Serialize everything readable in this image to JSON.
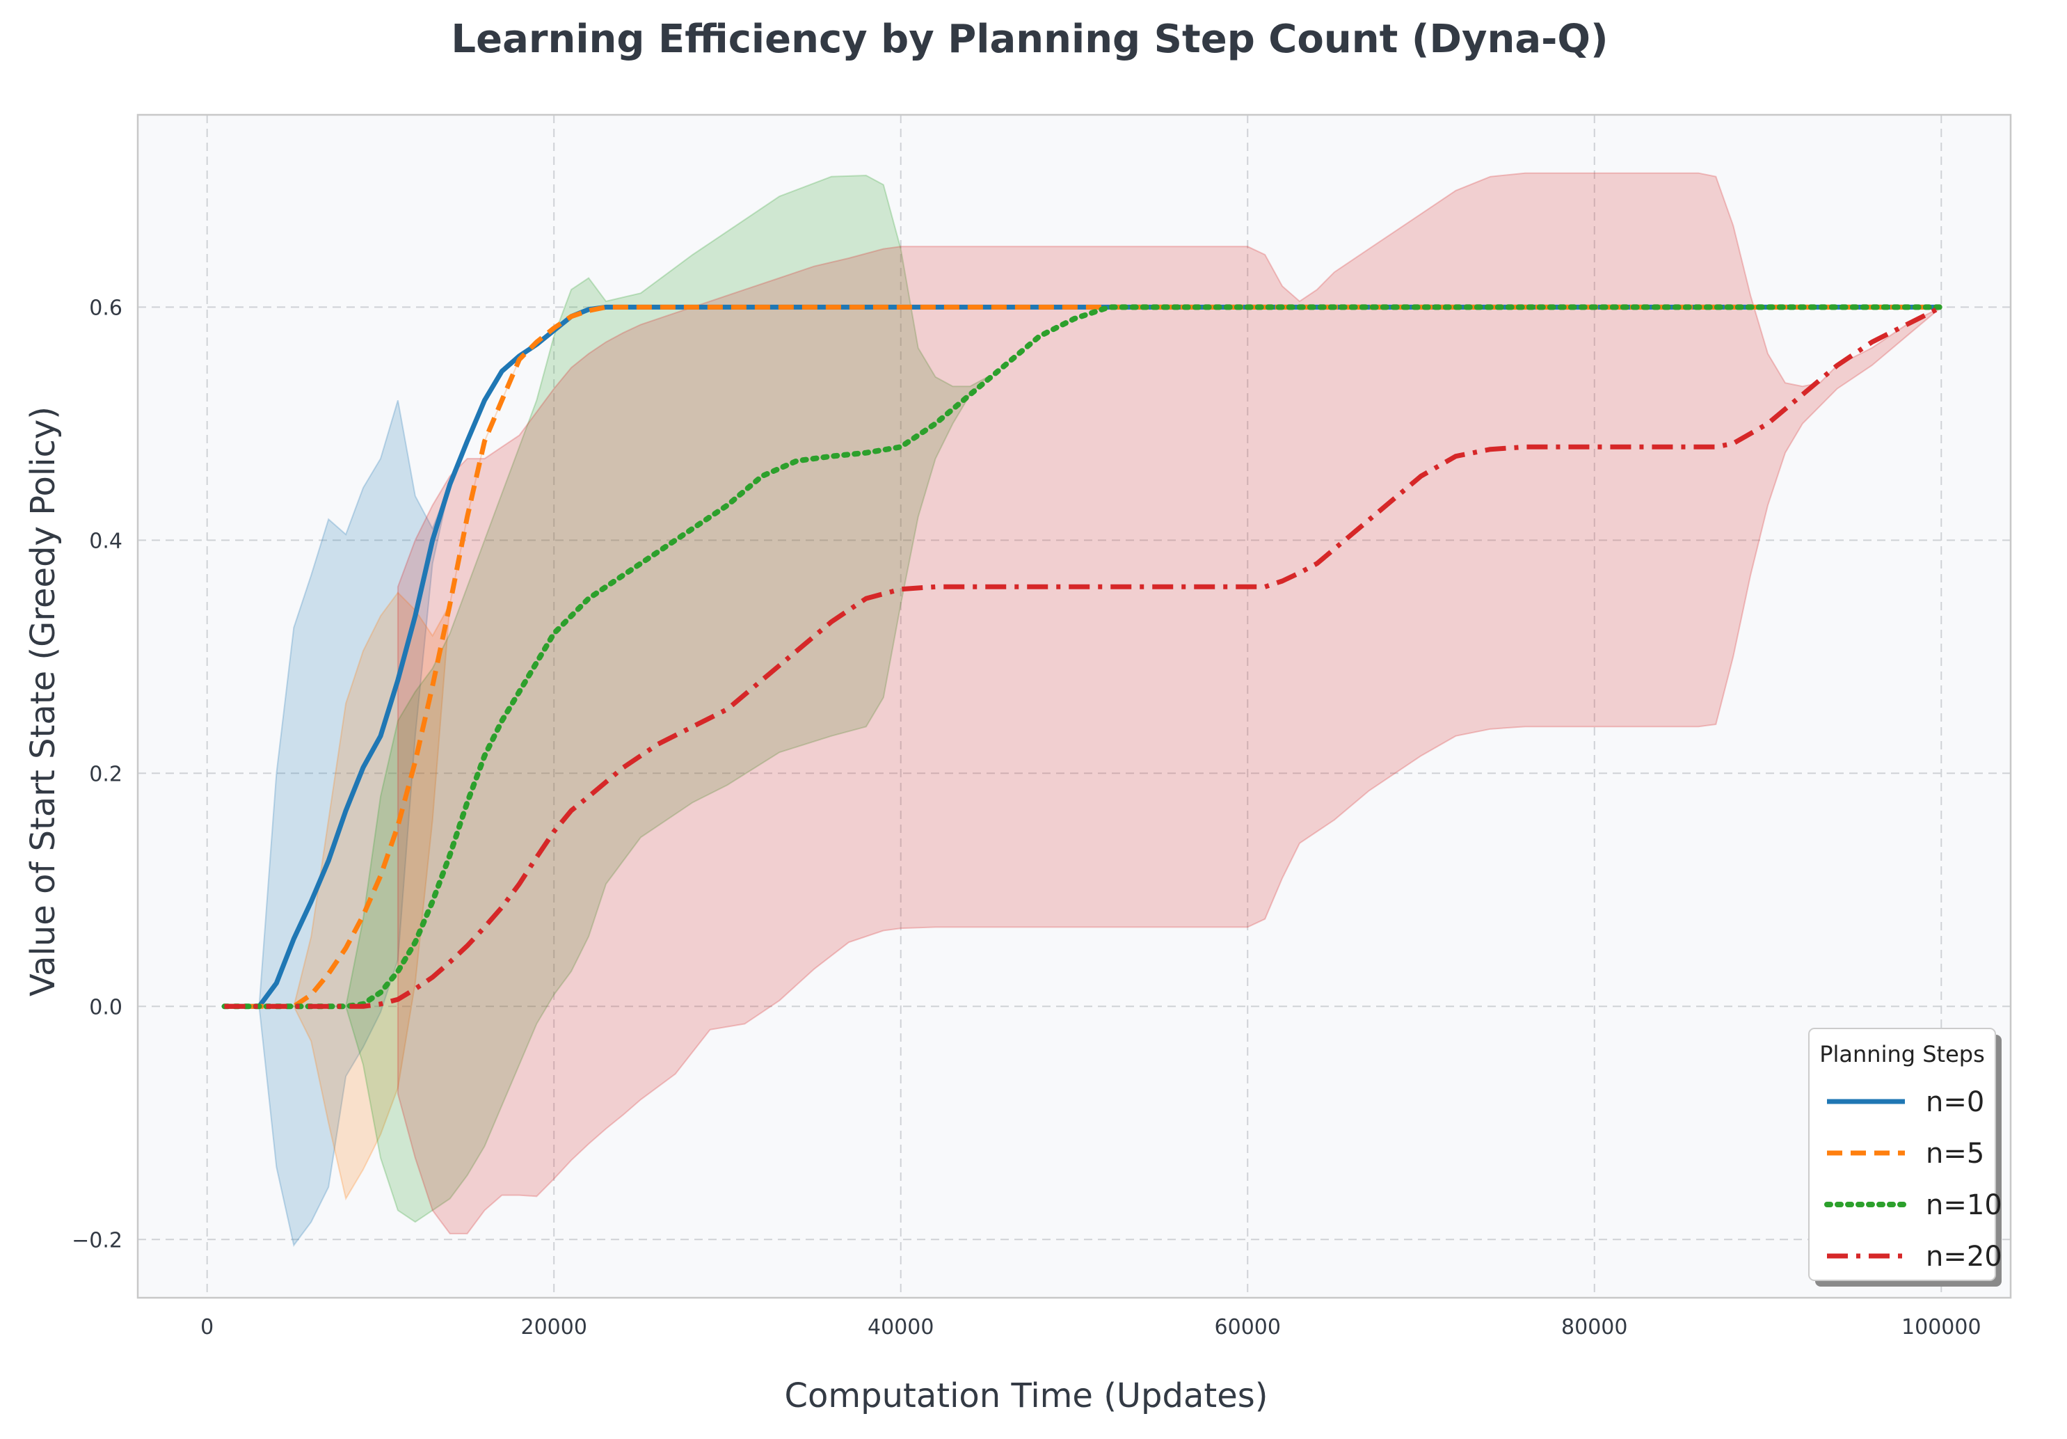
{
  "chart_data": {
    "type": "line",
    "title": "Learning Efficiency by Planning Step Count (Dyna-Q)",
    "xlabel": "Computation Time (Updates)",
    "ylabel": "Value of Start State (Greedy Policy)",
    "xlim": [
      -4000,
      104000
    ],
    "ylim": [
      -0.25,
      0.765
    ],
    "xticks": [
      0,
      20000,
      40000,
      60000,
      80000,
      100000
    ],
    "xtick_labels": [
      "0",
      "20000",
      "40000",
      "60000",
      "80000",
      "100000"
    ],
    "yticks": [
      -0.2,
      0.0,
      0.2,
      0.4,
      0.6
    ],
    "ytick_labels": [
      "−0.2",
      "0.0",
      "0.2",
      "0.4",
      "0.6"
    ],
    "grid": true,
    "legend": {
      "title": "Planning Steps",
      "placement": "lower-right"
    },
    "series": [
      {
        "name": "n=0",
        "color": "#1f77b4",
        "style": "solid",
        "x": [
          1000,
          3000,
          4000,
          5000,
          6000,
          7000,
          8000,
          9000,
          10000,
          11000,
          12000,
          13000,
          14000,
          15000,
          16000,
          17000,
          18000,
          19000,
          20000,
          21000,
          22000,
          23000,
          25000,
          30000,
          40000,
          50000,
          60000,
          70000,
          80000,
          90000,
          100000
        ],
        "y": [
          0.0,
          0.0,
          0.02,
          0.058,
          0.09,
          0.125,
          0.168,
          0.205,
          0.232,
          0.28,
          0.335,
          0.4,
          0.448,
          0.485,
          0.52,
          0.545,
          0.558,
          0.568,
          0.58,
          0.592,
          0.598,
          0.6,
          0.6,
          0.6,
          0.6,
          0.6,
          0.6,
          0.6,
          0.6,
          0.6,
          0.6
        ],
        "band_x": [
          3000,
          4000,
          5000,
          6000,
          7000,
          8000,
          9000,
          10000,
          11000,
          12000,
          13000,
          14000,
          15000,
          16000,
          17000,
          18000,
          19000,
          20000,
          21000,
          22000
        ],
        "band_upper": [
          0.0,
          0.2,
          0.325,
          0.37,
          0.418,
          0.405,
          0.445,
          0.47,
          0.52,
          0.438,
          0.41,
          0.448,
          0.485,
          0.52,
          0.545,
          0.558,
          0.568,
          0.58,
          0.592,
          0.598
        ],
        "band_lower": [
          0.0,
          -0.138,
          -0.205,
          -0.185,
          -0.155,
          -0.06,
          -0.035,
          -0.005,
          0.04,
          0.232,
          0.38,
          0.448,
          0.485,
          0.52,
          0.545,
          0.558,
          0.568,
          0.58,
          0.592,
          0.598
        ]
      },
      {
        "name": "n=5",
        "color": "#ff7f0e",
        "style": "dashed",
        "x": [
          1000,
          5000,
          6000,
          7000,
          8000,
          9000,
          10000,
          11000,
          12000,
          13000,
          14000,
          15000,
          16000,
          17000,
          18000,
          19000,
          20000,
          21000,
          22000,
          23000,
          25000,
          30000,
          40000,
          50000,
          60000,
          70000,
          80000,
          90000,
          100000
        ],
        "y": [
          0.0,
          0.0,
          0.01,
          0.028,
          0.05,
          0.078,
          0.112,
          0.155,
          0.21,
          0.275,
          0.345,
          0.42,
          0.485,
          0.52,
          0.555,
          0.57,
          0.582,
          0.592,
          0.597,
          0.6,
          0.6,
          0.6,
          0.6,
          0.6,
          0.6,
          0.6,
          0.6,
          0.6,
          0.6
        ],
        "band_x": [
          5000,
          6000,
          7000,
          8000,
          9000,
          10000,
          11000,
          12000,
          13000,
          14000,
          15000,
          16000,
          17000,
          18000,
          19000,
          20000,
          21000,
          22000
        ],
        "band_upper": [
          0.0,
          0.06,
          0.16,
          0.26,
          0.305,
          0.335,
          0.355,
          0.34,
          0.318,
          0.345,
          0.42,
          0.485,
          0.52,
          0.555,
          0.57,
          0.582,
          0.592,
          0.597
        ],
        "band_lower": [
          0.0,
          -0.03,
          -0.1,
          -0.165,
          -0.14,
          -0.11,
          -0.07,
          0.02,
          0.16,
          0.345,
          0.42,
          0.485,
          0.52,
          0.555,
          0.57,
          0.582,
          0.592,
          0.597
        ]
      },
      {
        "name": "n=10",
        "color": "#2ca02c",
        "style": "dotted",
        "x": [
          1000,
          8000,
          9000,
          10000,
          11000,
          12000,
          13000,
          14000,
          15000,
          16000,
          17000,
          18000,
          19000,
          20000,
          21000,
          22000,
          23000,
          24000,
          25000,
          26000,
          28000,
          30000,
          32000,
          34000,
          36000,
          38000,
          40000,
          42000,
          44000,
          46000,
          48000,
          50000,
          52000,
          55000,
          60000,
          70000,
          80000,
          90000,
          100000
        ],
        "y": [
          0.0,
          0.0,
          0.002,
          0.012,
          0.03,
          0.055,
          0.09,
          0.13,
          0.175,
          0.215,
          0.245,
          0.27,
          0.295,
          0.32,
          0.335,
          0.35,
          0.36,
          0.37,
          0.38,
          0.39,
          0.41,
          0.43,
          0.455,
          0.468,
          0.472,
          0.475,
          0.48,
          0.5,
          0.525,
          0.55,
          0.575,
          0.59,
          0.6,
          0.6,
          0.6,
          0.6,
          0.6,
          0.6,
          0.6
        ],
        "band_x": [
          8000,
          9000,
          10000,
          11000,
          12000,
          13000,
          14000,
          15000,
          16000,
          17000,
          18000,
          19000,
          20000,
          21000,
          22000,
          23000,
          25000,
          28000,
          30000,
          33000,
          36000,
          38000,
          39000,
          40000,
          41000,
          42000,
          43000,
          44000,
          45000
        ],
        "band_upper": [
          0.0,
          0.075,
          0.18,
          0.245,
          0.27,
          0.29,
          0.32,
          0.36,
          0.4,
          0.44,
          0.48,
          0.52,
          0.575,
          0.615,
          0.625,
          0.605,
          0.612,
          0.645,
          0.665,
          0.695,
          0.712,
          0.713,
          0.705,
          0.65,
          0.565,
          0.54,
          0.532,
          0.532,
          0.54
        ],
        "band_lower": [
          0.0,
          -0.05,
          -0.13,
          -0.175,
          -0.185,
          -0.175,
          -0.165,
          -0.145,
          -0.12,
          -0.085,
          -0.05,
          -0.015,
          0.01,
          0.03,
          0.06,
          0.105,
          0.145,
          0.175,
          0.19,
          0.218,
          0.232,
          0.24,
          0.265,
          0.345,
          0.42,
          0.47,
          0.5,
          0.525,
          0.54
        ]
      },
      {
        "name": "n=20",
        "color": "#d62728",
        "style": "dashdot",
        "x": [
          1000,
          9000,
          10000,
          11000,
          12000,
          13000,
          14000,
          15000,
          16000,
          17000,
          18000,
          19000,
          20000,
          21000,
          22000,
          24000,
          26000,
          28000,
          30000,
          32000,
          34000,
          36000,
          38000,
          40000,
          42000,
          50000,
          55000,
          61000,
          62000,
          63000,
          64000,
          66000,
          68000,
          70000,
          72000,
          74000,
          76000,
          86000,
          87000,
          88000,
          90000,
          92000,
          94000,
          96000,
          98000,
          100000
        ],
        "y": [
          0.0,
          0.0,
          0.002,
          0.006,
          0.015,
          0.025,
          0.038,
          0.052,
          0.068,
          0.085,
          0.105,
          0.128,
          0.15,
          0.168,
          0.18,
          0.205,
          0.225,
          0.24,
          0.255,
          0.28,
          0.305,
          0.33,
          0.35,
          0.358,
          0.36,
          0.36,
          0.36,
          0.36,
          0.365,
          0.372,
          0.38,
          0.405,
          0.43,
          0.455,
          0.472,
          0.478,
          0.48,
          0.48,
          0.48,
          0.483,
          0.5,
          0.525,
          0.55,
          0.57,
          0.585,
          0.6
        ],
        "band_x": [
          11000,
          12000,
          13000,
          14000,
          15000,
          16000,
          17000,
          18000,
          19000,
          20000,
          21000,
          22000,
          23000,
          24000,
          25000,
          27000,
          29000,
          31000,
          33000,
          35000,
          37000,
          39000,
          40000,
          42000,
          45000,
          50000,
          55000,
          60000,
          61000,
          62000,
          63000,
          64000,
          65000,
          67000,
          70000,
          72000,
          74000,
          76000,
          80000,
          86000,
          87000,
          88000,
          89000,
          90000,
          91000,
          92000,
          93000,
          94000,
          96000,
          98000,
          100000
        ],
        "band_upper": [
          0.36,
          0.4,
          0.43,
          0.455,
          0.47,
          0.47,
          0.48,
          0.49,
          0.51,
          0.53,
          0.548,
          0.56,
          0.57,
          0.578,
          0.585,
          0.595,
          0.605,
          0.615,
          0.625,
          0.635,
          0.642,
          0.65,
          0.652,
          0.652,
          0.652,
          0.652,
          0.652,
          0.652,
          0.645,
          0.618,
          0.605,
          0.615,
          0.63,
          0.65,
          0.68,
          0.7,
          0.712,
          0.715,
          0.715,
          0.715,
          0.712,
          0.67,
          0.61,
          0.56,
          0.535,
          0.532,
          0.535,
          0.55,
          0.565,
          0.585,
          0.6
        ],
        "band_lower": [
          -0.075,
          -0.13,
          -0.175,
          -0.195,
          -0.195,
          -0.175,
          -0.162,
          -0.162,
          -0.163,
          -0.148,
          -0.132,
          -0.118,
          -0.105,
          -0.093,
          -0.08,
          -0.058,
          -0.02,
          -0.015,
          0.005,
          0.032,
          0.055,
          0.065,
          0.067,
          0.068,
          0.068,
          0.068,
          0.068,
          0.068,
          0.075,
          0.11,
          0.14,
          0.15,
          0.16,
          0.185,
          0.215,
          0.232,
          0.238,
          0.24,
          0.24,
          0.24,
          0.242,
          0.3,
          0.37,
          0.43,
          0.475,
          0.5,
          0.515,
          0.53,
          0.55,
          0.575,
          0.6
        ]
      }
    ]
  }
}
